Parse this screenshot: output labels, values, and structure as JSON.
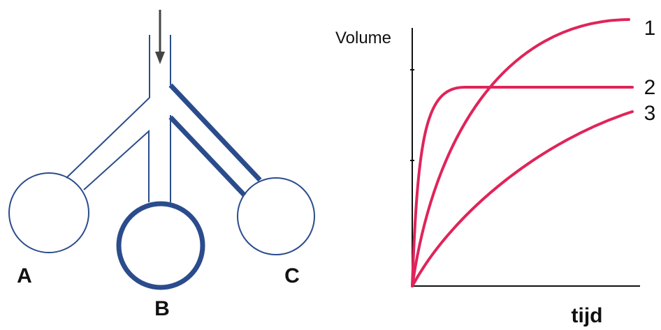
{
  "diagram": {
    "labels": [
      "A",
      "B",
      "C"
    ]
  },
  "chart": {
    "y_label": "Volume",
    "x_label": "tijd",
    "curve_labels": [
      "1",
      "2",
      "3"
    ]
  }
}
